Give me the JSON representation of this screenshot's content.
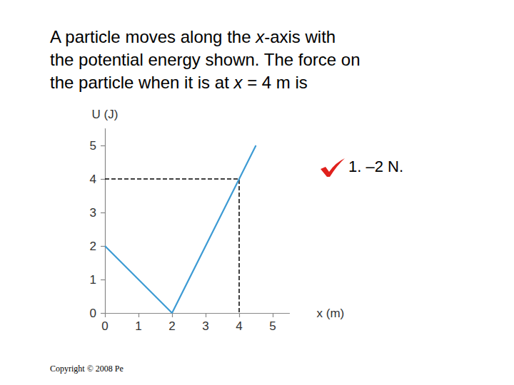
{
  "question": [
    "A particle moves along the x-axis with",
    "the potential energy shown. The force on",
    "the particle when it is at x = 4 m is"
  ],
  "answer": "1. –2 N.",
  "footer": "Copyright © 2008 Pe",
  "chart_data": {
    "type": "line",
    "x_label": "x (m)",
    "y_label": "U (J)",
    "xlim": [
      0,
      5.5
    ],
    "ylim": [
      0,
      5.5
    ],
    "xticks": [
      0,
      1,
      2,
      3,
      4,
      5
    ],
    "yticks": [
      0,
      1,
      2,
      3,
      4,
      5
    ],
    "grid": false,
    "series": [
      {
        "color": "#3d9bd4",
        "line_style": "solid",
        "x": [
          0,
          2,
          4,
          4.5
        ],
        "values": [
          2,
          0,
          4,
          5
        ]
      },
      {
        "color": "#000000",
        "line_style": "dashed",
        "x": [
          0,
          4,
          4
        ],
        "values": [
          4,
          4,
          0
        ]
      }
    ]
  }
}
